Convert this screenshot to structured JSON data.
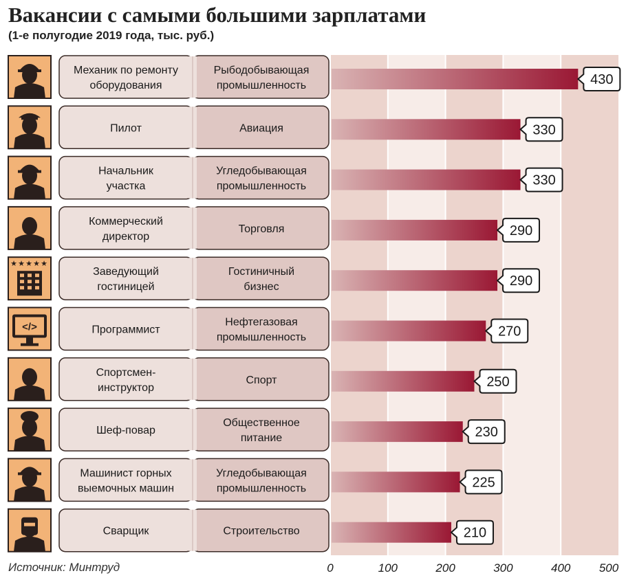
{
  "title": "Вакансии с самыми большими зарплатами",
  "subtitle": "(1-е полугодие 2019 года, тыс. руб.)",
  "source": "Источник: Минтруд",
  "colors": {
    "bar_dark": "#9a1834",
    "bar_light": "#d9b3b3",
    "icon_bg": "#f2b377",
    "row_bg_left": "#ede0dc",
    "row_bg_right": "#dfc7c3",
    "band": "#ecd4cd"
  },
  "chart_data": {
    "type": "bar",
    "orientation": "horizontal",
    "categories": [
      "Механик по ремонту\nоборудования",
      "Пилот",
      "Начальник\nучастка",
      "Коммерческий\nдиректор",
      "Заведующий\nгостиницей",
      "Программист",
      "Спортсмен-\nинструктор",
      "Шеф-повар",
      "Машинист горных\nвыемочных машин",
      "Сварщик"
    ],
    "industries": [
      "Рыбодобывающая\nпромышленность",
      "Авиация",
      "Угледобывающая\nпромышленность",
      "Торговля",
      "Гостиничный\nбизнес",
      "Нефтегазовая\nпромышленность",
      "Спорт",
      "Общественное\nпитание",
      "Угледобывающая\nпромышленность",
      "Строительство"
    ],
    "icons": [
      "mechanic-helmet-wrench-icon",
      "pilot-icon",
      "hardhat-worker-icon",
      "businessman-icon",
      "hotel-five-stars-icon",
      "monitor-code-icon",
      "sportsman-icon",
      "chef-icon",
      "miner-helmet-icon",
      "welder-mask-icon"
    ],
    "values": [
      430,
      330,
      330,
      290,
      290,
      270,
      250,
      230,
      225,
      210
    ],
    "xlim": [
      0,
      500
    ],
    "xticks": [
      0,
      100,
      200,
      300,
      400,
      500
    ],
    "grid": "alternating vertical bands"
  }
}
